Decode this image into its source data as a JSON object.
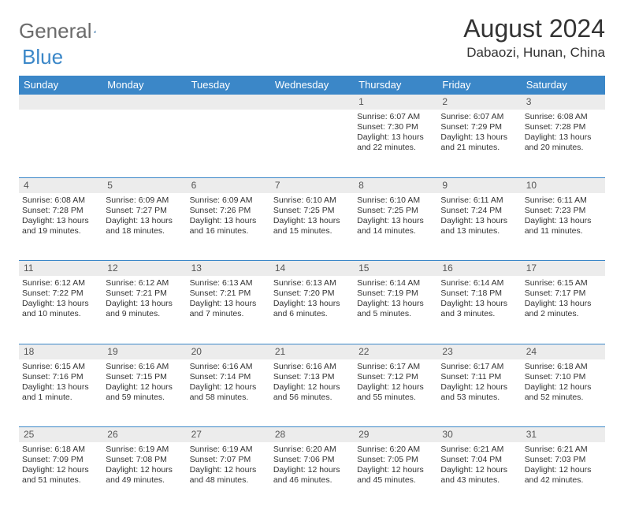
{
  "logo": {
    "text1": "General",
    "text2": "Blue",
    "color1": "#6b6b6b",
    "color2": "#3b87c8"
  },
  "title": "August 2024",
  "location": "Dabaozi, Hunan, China",
  "header_bg": "#3b87c8",
  "daynum_bg": "#ececec",
  "weekdays": [
    "Sunday",
    "Monday",
    "Tuesday",
    "Wednesday",
    "Thursday",
    "Friday",
    "Saturday"
  ],
  "weeks": [
    {
      "nums": [
        "",
        "",
        "",
        "",
        "1",
        "2",
        "3"
      ],
      "cells": [
        null,
        null,
        null,
        null,
        {
          "sunrise": "Sunrise: 6:07 AM",
          "sunset": "Sunset: 7:30 PM",
          "daylight": "Daylight: 13 hours and 22 minutes."
        },
        {
          "sunrise": "Sunrise: 6:07 AM",
          "sunset": "Sunset: 7:29 PM",
          "daylight": "Daylight: 13 hours and 21 minutes."
        },
        {
          "sunrise": "Sunrise: 6:08 AM",
          "sunset": "Sunset: 7:28 PM",
          "daylight": "Daylight: 13 hours and 20 minutes."
        }
      ]
    },
    {
      "nums": [
        "4",
        "5",
        "6",
        "7",
        "8",
        "9",
        "10"
      ],
      "cells": [
        {
          "sunrise": "Sunrise: 6:08 AM",
          "sunset": "Sunset: 7:28 PM",
          "daylight": "Daylight: 13 hours and 19 minutes."
        },
        {
          "sunrise": "Sunrise: 6:09 AM",
          "sunset": "Sunset: 7:27 PM",
          "daylight": "Daylight: 13 hours and 18 minutes."
        },
        {
          "sunrise": "Sunrise: 6:09 AM",
          "sunset": "Sunset: 7:26 PM",
          "daylight": "Daylight: 13 hours and 16 minutes."
        },
        {
          "sunrise": "Sunrise: 6:10 AM",
          "sunset": "Sunset: 7:25 PM",
          "daylight": "Daylight: 13 hours and 15 minutes."
        },
        {
          "sunrise": "Sunrise: 6:10 AM",
          "sunset": "Sunset: 7:25 PM",
          "daylight": "Daylight: 13 hours and 14 minutes."
        },
        {
          "sunrise": "Sunrise: 6:11 AM",
          "sunset": "Sunset: 7:24 PM",
          "daylight": "Daylight: 13 hours and 13 minutes."
        },
        {
          "sunrise": "Sunrise: 6:11 AM",
          "sunset": "Sunset: 7:23 PM",
          "daylight": "Daylight: 13 hours and 11 minutes."
        }
      ]
    },
    {
      "nums": [
        "11",
        "12",
        "13",
        "14",
        "15",
        "16",
        "17"
      ],
      "cells": [
        {
          "sunrise": "Sunrise: 6:12 AM",
          "sunset": "Sunset: 7:22 PM",
          "daylight": "Daylight: 13 hours and 10 minutes."
        },
        {
          "sunrise": "Sunrise: 6:12 AM",
          "sunset": "Sunset: 7:21 PM",
          "daylight": "Daylight: 13 hours and 9 minutes."
        },
        {
          "sunrise": "Sunrise: 6:13 AM",
          "sunset": "Sunset: 7:21 PM",
          "daylight": "Daylight: 13 hours and 7 minutes."
        },
        {
          "sunrise": "Sunrise: 6:13 AM",
          "sunset": "Sunset: 7:20 PM",
          "daylight": "Daylight: 13 hours and 6 minutes."
        },
        {
          "sunrise": "Sunrise: 6:14 AM",
          "sunset": "Sunset: 7:19 PM",
          "daylight": "Daylight: 13 hours and 5 minutes."
        },
        {
          "sunrise": "Sunrise: 6:14 AM",
          "sunset": "Sunset: 7:18 PM",
          "daylight": "Daylight: 13 hours and 3 minutes."
        },
        {
          "sunrise": "Sunrise: 6:15 AM",
          "sunset": "Sunset: 7:17 PM",
          "daylight": "Daylight: 13 hours and 2 minutes."
        }
      ]
    },
    {
      "nums": [
        "18",
        "19",
        "20",
        "21",
        "22",
        "23",
        "24"
      ],
      "cells": [
        {
          "sunrise": "Sunrise: 6:15 AM",
          "sunset": "Sunset: 7:16 PM",
          "daylight": "Daylight: 13 hours and 1 minute."
        },
        {
          "sunrise": "Sunrise: 6:16 AM",
          "sunset": "Sunset: 7:15 PM",
          "daylight": "Daylight: 12 hours and 59 minutes."
        },
        {
          "sunrise": "Sunrise: 6:16 AM",
          "sunset": "Sunset: 7:14 PM",
          "daylight": "Daylight: 12 hours and 58 minutes."
        },
        {
          "sunrise": "Sunrise: 6:16 AM",
          "sunset": "Sunset: 7:13 PM",
          "daylight": "Daylight: 12 hours and 56 minutes."
        },
        {
          "sunrise": "Sunrise: 6:17 AM",
          "sunset": "Sunset: 7:12 PM",
          "daylight": "Daylight: 12 hours and 55 minutes."
        },
        {
          "sunrise": "Sunrise: 6:17 AM",
          "sunset": "Sunset: 7:11 PM",
          "daylight": "Daylight: 12 hours and 53 minutes."
        },
        {
          "sunrise": "Sunrise: 6:18 AM",
          "sunset": "Sunset: 7:10 PM",
          "daylight": "Daylight: 12 hours and 52 minutes."
        }
      ]
    },
    {
      "nums": [
        "25",
        "26",
        "27",
        "28",
        "29",
        "30",
        "31"
      ],
      "cells": [
        {
          "sunrise": "Sunrise: 6:18 AM",
          "sunset": "Sunset: 7:09 PM",
          "daylight": "Daylight: 12 hours and 51 minutes."
        },
        {
          "sunrise": "Sunrise: 6:19 AM",
          "sunset": "Sunset: 7:08 PM",
          "daylight": "Daylight: 12 hours and 49 minutes."
        },
        {
          "sunrise": "Sunrise: 6:19 AM",
          "sunset": "Sunset: 7:07 PM",
          "daylight": "Daylight: 12 hours and 48 minutes."
        },
        {
          "sunrise": "Sunrise: 6:20 AM",
          "sunset": "Sunset: 7:06 PM",
          "daylight": "Daylight: 12 hours and 46 minutes."
        },
        {
          "sunrise": "Sunrise: 6:20 AM",
          "sunset": "Sunset: 7:05 PM",
          "daylight": "Daylight: 12 hours and 45 minutes."
        },
        {
          "sunrise": "Sunrise: 6:21 AM",
          "sunset": "Sunset: 7:04 PM",
          "daylight": "Daylight: 12 hours and 43 minutes."
        },
        {
          "sunrise": "Sunrise: 6:21 AM",
          "sunset": "Sunset: 7:03 PM",
          "daylight": "Daylight: 12 hours and 42 minutes."
        }
      ]
    }
  ]
}
